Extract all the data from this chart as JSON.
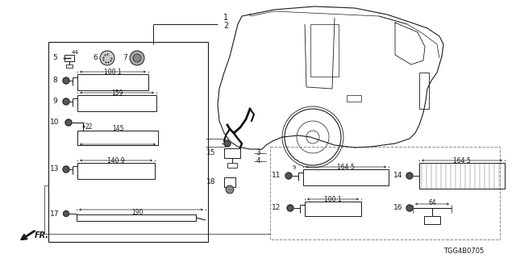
{
  "bg_color": "#ffffff",
  "line_color": "#1a1a1a",
  "diagram_id": "TGG4B0705",
  "figsize": [
    6.4,
    3.2
  ],
  "dpi": 100,
  "xlim": [
    0,
    640
  ],
  "ylim": [
    0,
    320
  ]
}
